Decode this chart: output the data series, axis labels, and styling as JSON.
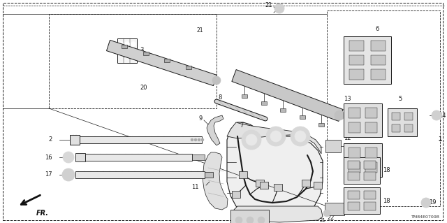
{
  "diagram_code": "TM84E0700B",
  "background_color": "#ffffff",
  "fig_width": 6.4,
  "fig_height": 3.19,
  "dpi": 100,
  "line_color": "#1a1a1a",
  "label_fontsize": 6.0,
  "small_fontsize": 4.5
}
